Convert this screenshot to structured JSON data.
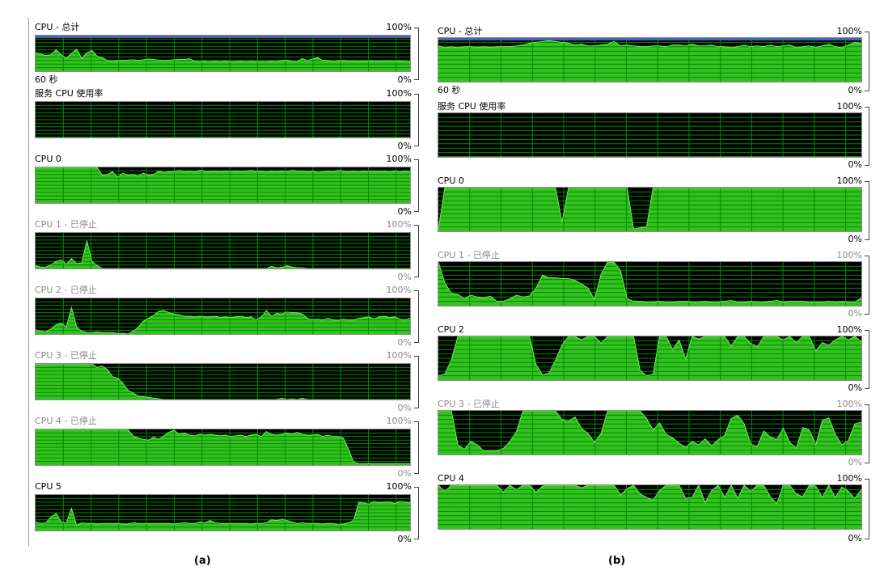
{
  "colors": {
    "graph_fill": "#33c11e",
    "graph_line": "#6cf25a",
    "grid": "#008a00",
    "background": "#000000",
    "total_top_bar": "#4a5fb8"
  },
  "figures": [
    {
      "label": "(a)",
      "panels": [
        {
          "title": "CPU - 总计",
          "max_label": "100%",
          "min_label": "0%",
          "time_label": "60 秒",
          "stopped": false,
          "total_bar": true,
          "usage": [
            52,
            48,
            44,
            46,
            60,
            46,
            36,
            50,
            62,
            36,
            52,
            58,
            42,
            38,
            30,
            28,
            30,
            30,
            31,
            32,
            30,
            32,
            34,
            33,
            31,
            30,
            31,
            32,
            33,
            33,
            35,
            28,
            27,
            28,
            27,
            28,
            27,
            28,
            27,
            27,
            28,
            27,
            28,
            27,
            27,
            27,
            28,
            27,
            30,
            31,
            27,
            27,
            35,
            30,
            34,
            38,
            30,
            30,
            27,
            29,
            30,
            28,
            29,
            28,
            29,
            28,
            29,
            28,
            29,
            29,
            28,
            29,
            28,
            27
          ]
        },
        {
          "title": "服务 CPU 使用率",
          "max_label": "100%",
          "min_label": "0%",
          "stopped": false,
          "usage": [
            0,
            0,
            0,
            0,
            0,
            0,
            0,
            0,
            0,
            0,
            0,
            0,
            0,
            0,
            0,
            0,
            0,
            0,
            0,
            0,
            0,
            0,
            0,
            0,
            0,
            0,
            0,
            0,
            0,
            0,
            0,
            0,
            0,
            0,
            0,
            0,
            0,
            0,
            0,
            0,
            0,
            0,
            0,
            0,
            0,
            0,
            0,
            0,
            0,
            0,
            0,
            0,
            0,
            0,
            0,
            0,
            0,
            0,
            0,
            0,
            0,
            0,
            0,
            0,
            0,
            0,
            0,
            0,
            0,
            0,
            0,
            0,
            0,
            0
          ]
        },
        {
          "title": "CPU 0",
          "max_label": "100%",
          "min_label": "0%",
          "stopped": false,
          "usage": [
            100,
            100,
            100,
            100,
            100,
            100,
            100,
            100,
            100,
            100,
            100,
            100,
            100,
            78,
            80,
            88,
            72,
            84,
            78,
            80,
            76,
            84,
            78,
            80,
            90,
            86,
            88,
            88,
            92,
            88,
            90,
            88,
            92,
            90,
            89,
            90,
            89,
            90,
            89,
            90,
            89,
            90,
            92,
            89,
            90,
            88,
            90,
            89,
            90,
            89,
            92,
            90,
            90,
            88,
            90,
            86,
            88,
            90,
            88,
            92,
            90,
            88,
            90,
            88,
            90,
            89,
            90,
            89,
            90,
            88,
            90,
            88,
            90,
            89
          ]
        },
        {
          "title": "CPU 1 - 已停止",
          "max_label": "100%",
          "min_label": "0%",
          "stopped": true,
          "usage": [
            8,
            4,
            4,
            10,
            20,
            24,
            12,
            28,
            14,
            16,
            78,
            20,
            8,
            0,
            0,
            0,
            0,
            0,
            0,
            0,
            0,
            0,
            0,
            0,
            0,
            0,
            0,
            0,
            0,
            0,
            0,
            0,
            0,
            0,
            0,
            0,
            0,
            0,
            0,
            0,
            0,
            0,
            0,
            0,
            0,
            0,
            6,
            2,
            3,
            8,
            4,
            2,
            2,
            0,
            0,
            0,
            0,
            0,
            0,
            0,
            0,
            0,
            0,
            0,
            0,
            0,
            0,
            0,
            0,
            0,
            0,
            0,
            0,
            0
          ]
        },
        {
          "title": "CPU 2 - 已停止",
          "max_label": "100%",
          "min_label": "0%",
          "stopped": true,
          "usage": [
            12,
            8,
            6,
            14,
            26,
            30,
            20,
            74,
            20,
            8,
            4,
            4,
            6,
            4,
            4,
            4,
            2,
            2,
            0,
            8,
            18,
            36,
            44,
            52,
            64,
            66,
            60,
            56,
            54,
            50,
            50,
            48,
            50,
            48,
            48,
            50,
            46,
            48,
            46,
            48,
            50,
            46,
            48,
            40,
            48,
            66,
            50,
            58,
            56,
            62,
            60,
            60,
            56,
            44,
            40,
            42,
            40,
            44,
            40,
            38,
            42,
            40,
            40,
            44,
            46,
            48,
            42,
            48,
            50,
            46,
            48,
            42,
            40,
            44
          ]
        },
        {
          "title": "CPU 3 - 已停止",
          "max_label": "100%",
          "min_label": "0%",
          "stopped": true,
          "usage": [
            100,
            100,
            100,
            100,
            100,
            100,
            100,
            100,
            100,
            100,
            100,
            100,
            90,
            94,
            84,
            64,
            60,
            46,
            26,
            18,
            10,
            8,
            6,
            4,
            2,
            0,
            0,
            0,
            0,
            0,
            0,
            0,
            0,
            0,
            0,
            0,
            0,
            0,
            0,
            0,
            0,
            0,
            0,
            0,
            0,
            0,
            0,
            0,
            4,
            0,
            2,
            0,
            4,
            0,
            0,
            0,
            0,
            0,
            0,
            0,
            0,
            0,
            0,
            0,
            0,
            0,
            0,
            0,
            0,
            0,
            0,
            0,
            0,
            0
          ]
        },
        {
          "title": "CPU 4 - 已停止",
          "max_label": "100%",
          "min_label": "0%",
          "stopped": true,
          "usage": [
            100,
            100,
            100,
            100,
            100,
            100,
            100,
            100,
            100,
            100,
            100,
            100,
            100,
            100,
            100,
            100,
            100,
            100,
            100,
            82,
            76,
            72,
            70,
            78,
            72,
            82,
            92,
            98,
            86,
            90,
            84,
            82,
            86,
            84,
            86,
            84,
            82,
            84,
            80,
            82,
            84,
            80,
            84,
            86,
            80,
            94,
            86,
            84,
            86,
            90,
            86,
            92,
            86,
            84,
            84,
            86,
            80,
            84,
            80,
            80,
            76,
            44,
            8,
            4,
            4,
            4,
            4,
            4,
            4,
            4,
            4,
            4,
            4,
            4
          ]
        },
        {
          "title": "CPU 5",
          "max_label": "100%",
          "min_label": "0%",
          "stopped": false,
          "usage": [
            24,
            20,
            22,
            38,
            48,
            24,
            22,
            62,
            14,
            22,
            20,
            20,
            18,
            20,
            20,
            20,
            20,
            18,
            18,
            22,
            20,
            20,
            20,
            20,
            20,
            20,
            20,
            18,
            20,
            22,
            20,
            20,
            24,
            22,
            28,
            22,
            20,
            20,
            20,
            20,
            20,
            20,
            18,
            20,
            20,
            22,
            30,
            28,
            32,
            28,
            24,
            20,
            22,
            20,
            20,
            20,
            18,
            20,
            20,
            16,
            18,
            22,
            28,
            80,
            78,
            74,
            82,
            78,
            80,
            80,
            76,
            82,
            80,
            78
          ]
        }
      ]
    },
    {
      "label": "(b)",
      "panels": [
        {
          "title": "CPU - 总计",
          "max_label": "100%",
          "min_label": "0%",
          "time_label": "60 秒",
          "stopped": false,
          "total_bar": true,
          "usage": [
            82,
            78,
            80,
            78,
            80,
            80,
            79,
            80,
            79,
            80,
            80,
            80,
            82,
            84,
            88,
            90,
            92,
            94,
            92,
            90,
            88,
            84,
            86,
            82,
            82,
            84,
            86,
            92,
            82,
            84,
            82,
            80,
            80,
            82,
            82,
            80,
            84,
            84,
            82,
            86,
            82,
            82,
            84,
            80,
            80,
            78,
            80,
            84,
            80,
            82,
            80,
            84,
            80,
            82,
            84,
            78,
            80,
            82,
            78,
            82,
            86,
            80,
            78,
            84,
            90,
            88
          ]
        },
        {
          "title": "服务 CPU 使用率",
          "max_label": "100%",
          "min_label": "0%",
          "stopped": false,
          "usage": [
            0,
            0,
            0,
            0,
            0,
            0,
            0,
            0,
            0,
            0,
            0,
            0,
            0,
            0,
            0,
            0,
            0,
            0,
            0,
            0,
            0,
            0,
            0,
            0,
            0,
            0,
            0,
            0,
            0,
            0,
            0,
            0,
            0,
            0,
            0,
            0,
            0,
            0,
            0,
            0,
            0,
            0,
            0,
            0,
            0,
            0,
            0,
            0,
            0,
            0,
            0,
            0,
            0,
            0,
            0,
            0,
            0,
            0,
            0,
            0,
            0,
            0,
            0,
            0,
            0,
            0
          ]
        },
        {
          "title": "CPU 0",
          "max_label": "100%",
          "min_label": "0%",
          "stopped": false,
          "usage": [
            5,
            100,
            100,
            100,
            100,
            100,
            100,
            100,
            100,
            100,
            100,
            100,
            100,
            100,
            100,
            100,
            100,
            100,
            100,
            20,
            100,
            100,
            100,
            100,
            100,
            100,
            100,
            100,
            100,
            100,
            5,
            8,
            10,
            100,
            100,
            100,
            100,
            100,
            100,
            100,
            100,
            100,
            100,
            100,
            100,
            100,
            100,
            100,
            100,
            100,
            100,
            100,
            100,
            100,
            100,
            100,
            100,
            100,
            100,
            100,
            100,
            100,
            100,
            100,
            100,
            100
          ]
        },
        {
          "title": "CPU 1 - 已停止",
          "max_label": "100%",
          "min_label": "0%",
          "stopped": true,
          "usage": [
            100,
            52,
            28,
            26,
            16,
            24,
            20,
            18,
            22,
            10,
            10,
            16,
            24,
            20,
            22,
            40,
            70,
            64,
            64,
            62,
            62,
            58,
            50,
            40,
            14,
            72,
            100,
            100,
            80,
            16,
            10,
            10,
            8,
            8,
            10,
            8,
            8,
            10,
            10,
            8,
            8,
            10,
            8,
            8,
            10,
            12,
            8,
            8,
            10,
            8,
            8,
            10,
            12,
            8,
            10,
            10,
            10,
            8,
            8,
            8,
            10,
            8,
            10,
            8,
            8,
            18
          ]
        },
        {
          "title": "CPU 2",
          "max_label": "100%",
          "min_label": "0%",
          "stopped": false,
          "usage": [
            10,
            14,
            46,
            100,
            100,
            100,
            100,
            100,
            100,
            100,
            100,
            100,
            100,
            100,
            100,
            36,
            12,
            16,
            46,
            80,
            100,
            100,
            92,
            100,
            100,
            84,
            100,
            100,
            100,
            100,
            100,
            22,
            10,
            14,
            100,
            100,
            70,
            92,
            48,
            100,
            94,
            100,
            100,
            100,
            100,
            78,
            100,
            100,
            84,
            76,
            100,
            100,
            100,
            92,
            100,
            86,
            100,
            100,
            66,
            86,
            80,
            92,
            100,
            92,
            100,
            88
          ]
        },
        {
          "title": "CPU 3 - 已停止",
          "max_label": "100%",
          "min_label": "0%",
          "stopped": true,
          "usage": [
            100,
            100,
            100,
            22,
            12,
            30,
            22,
            8,
            8,
            8,
            14,
            30,
            52,
            100,
            100,
            100,
            100,
            100,
            100,
            80,
            76,
            86,
            60,
            48,
            28,
            48,
            100,
            100,
            100,
            100,
            100,
            100,
            82,
            56,
            72,
            46,
            38,
            26,
            16,
            30,
            22,
            36,
            20,
            34,
            44,
            82,
            90,
            70,
            24,
            18,
            54,
            40,
            34,
            60,
            28,
            14,
            62,
            56,
            22,
            78,
            84,
            46,
            22,
            32,
            70,
            74
          ]
        },
        {
          "title": "CPU 4",
          "max_label": "100%",
          "min_label": "0%",
          "stopped": false,
          "usage": [
            100,
            86,
            100,
            100,
            100,
            100,
            100,
            100,
            100,
            100,
            84,
            100,
            90,
            100,
            100,
            84,
            98,
            100,
            100,
            100,
            100,
            100,
            94,
            100,
            100,
            100,
            100,
            100,
            78,
            92,
            100,
            80,
            72,
            66,
            88,
            100,
            100,
            100,
            70,
            72,
            100,
            60,
            88,
            100,
            72,
            100,
            70,
            100,
            86,
            100,
            100,
            74,
            58,
            100,
            100,
            80,
            74,
            100,
            98,
            72,
            100,
            72,
            96,
            86,
            70,
            90
          ]
        }
      ]
    }
  ]
}
